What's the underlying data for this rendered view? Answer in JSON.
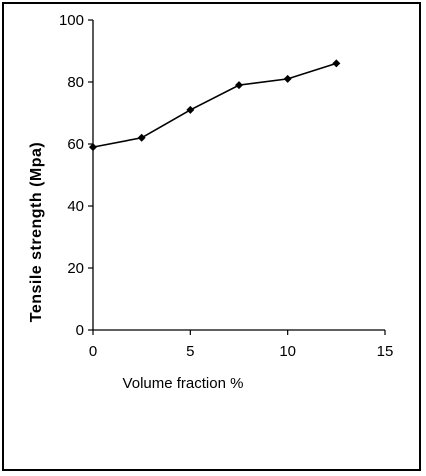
{
  "chart_data": {
    "type": "line",
    "title": "",
    "xlabel": "Volume fraction %",
    "ylabel": "Tensile strength (Mpa)",
    "xlim": [
      0,
      15
    ],
    "ylim": [
      0,
      100
    ],
    "x_ticks": [
      0,
      5,
      10,
      15
    ],
    "y_ticks": [
      0,
      20,
      40,
      60,
      80,
      100
    ],
    "grid": false,
    "legend": "none",
    "series": [
      {
        "x": [
          0,
          2.5,
          5,
          7.5,
          10,
          12.5
        ],
        "values": [
          59,
          62,
          71,
          79,
          81,
          86
        ]
      }
    ],
    "colors": {
      "line": "#000000",
      "marker": "#000000",
      "axis": "#000000"
    }
  }
}
